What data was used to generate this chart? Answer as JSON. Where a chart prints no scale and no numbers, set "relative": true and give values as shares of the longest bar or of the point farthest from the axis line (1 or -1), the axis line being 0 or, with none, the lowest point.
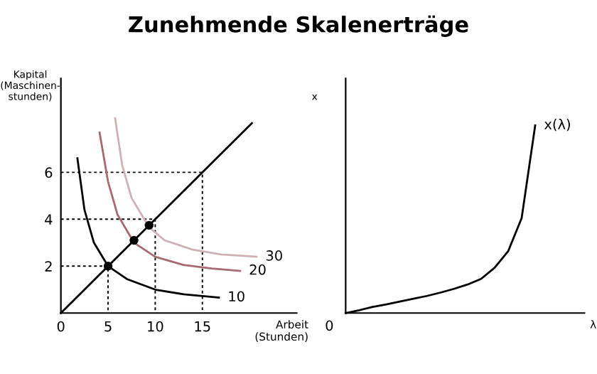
{
  "chart_data": [
    {
      "type": "line",
      "title": "Zunehmende Skalenerträge",
      "xlabel": "Arbeit\n(Stunden)",
      "ylabel": "Kapital\n(Maschinen-\nstunden)",
      "xlim": [
        0,
        25
      ],
      "ylim": [
        0,
        10
      ],
      "xticks": [
        0,
        5,
        10,
        15
      ],
      "yticks": [
        2,
        4,
        6
      ],
      "grid": false,
      "legend": false,
      "series": [
        {
          "type": "line",
          "line_style": "dashed",
          "color": "#000000",
          "x": [
            0,
            15,
            15
          ],
          "values": [
            6,
            6,
            0
          ]
        },
        {
          "type": "line",
          "line_style": "dashed",
          "color": "#000000",
          "x": [
            0,
            10,
            10
          ],
          "values": [
            4,
            4,
            0
          ]
        },
        {
          "type": "line",
          "line_style": "dashed",
          "color": "#000000",
          "x": [
            0,
            5,
            5
          ],
          "values": [
            2,
            2,
            0
          ]
        },
        {
          "type": "line",
          "line_style": "solid",
          "color": "#000000",
          "x": [
            0,
            20.25
          ],
          "values": [
            0,
            8.1
          ]
        },
        {
          "type": "line",
          "line_style": "solid",
          "name": "10",
          "color": "#000000",
          "x": [
            1.75,
            2.5,
            3.5,
            5,
            7,
            10,
            13,
            16.75
          ],
          "values": [
            6.6,
            4.4,
            3,
            2,
            1.45,
            1,
            0.8,
            0.66
          ]
        },
        {
          "type": "line",
          "line_style": "solid",
          "name": "20",
          "color": "#a86a70",
          "x": [
            4.1,
            5,
            6,
            7.75,
            10,
            13,
            16,
            19
          ],
          "values": [
            7.7,
            5.6,
            4.2,
            3,
            2.4,
            2.05,
            1.9,
            1.8
          ]
        },
        {
          "type": "line",
          "line_style": "solid",
          "name": "30",
          "color": "#cfb0b3",
          "x": [
            5.75,
            6.5,
            7.5,
            9.35,
            11,
            14,
            17,
            20.75
          ],
          "values": [
            8.3,
            6.3,
            4.9,
            3.66,
            3.1,
            2.7,
            2.5,
            2.4
          ]
        },
        {
          "type": "scatter",
          "marker": "circle",
          "color": "#000000",
          "x": [
            5,
            7.75,
            9.35
          ],
          "values": [
            2,
            3.1,
            3.74
          ]
        }
      ]
    },
    {
      "type": "line",
      "relative": true,
      "xlabel": "λ",
      "ylabel": "x",
      "grid": false,
      "legend": false,
      "annotations": [
        "0"
      ],
      "categories": [
        null,
        null,
        null,
        null,
        null,
        null,
        null,
        null,
        null,
        null,
        null,
        null,
        null,
        null,
        null
      ],
      "series": [
        {
          "type": "line",
          "line_style": "solid",
          "name": "x(λ)",
          "color": "#000000",
          "values": [
            0,
            0.015,
            0.033,
            0.046,
            0.061,
            0.076,
            0.091,
            0.109,
            0.129,
            0.152,
            0.182,
            0.241,
            0.329,
            0.506,
            1
          ]
        }
      ]
    }
  ]
}
